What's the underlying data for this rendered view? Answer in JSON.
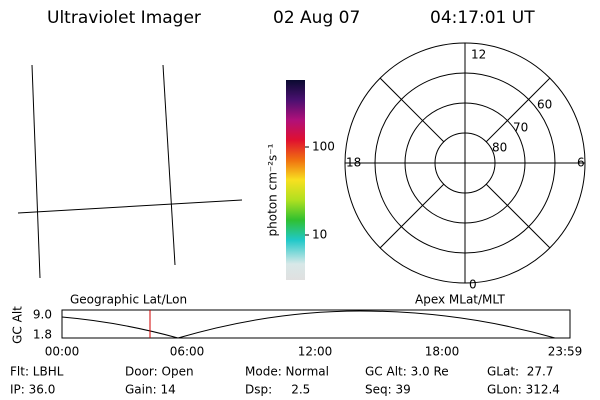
{
  "header": {
    "title": "Ultraviolet Imager",
    "date": "02 Aug 07",
    "time": "04:17:01 UT"
  },
  "colorbar": {
    "label": "photon cm⁻²s⁻¹",
    "ticks": [
      "100",
      "10"
    ]
  },
  "polar": {
    "mlt_labels": [
      "12",
      "18",
      "6",
      "0"
    ],
    "lat_labels": [
      "60",
      "70",
      "80"
    ]
  },
  "timeline": {
    "ylabel": "GC Alt",
    "yticks": [
      "9.0",
      "1.8"
    ],
    "left_label": "Geographic Lat/Lon",
    "right_label": "Apex MLat/MLT",
    "xticks": [
      "00:00",
      "06:00",
      "12:00",
      "18:00",
      "23:59"
    ]
  },
  "status": {
    "rows": [
      [
        "Flt: LBHL",
        "Door: Open",
        "Mode: Normal",
        "GC Alt: 3.0 Re",
        "GLat:  27.7"
      ],
      [
        "IP: 36.0",
        "Gain: 14",
        "Dsp:     2.5",
        "Seq: 39",
        "GLon: 312.4"
      ]
    ]
  }
}
